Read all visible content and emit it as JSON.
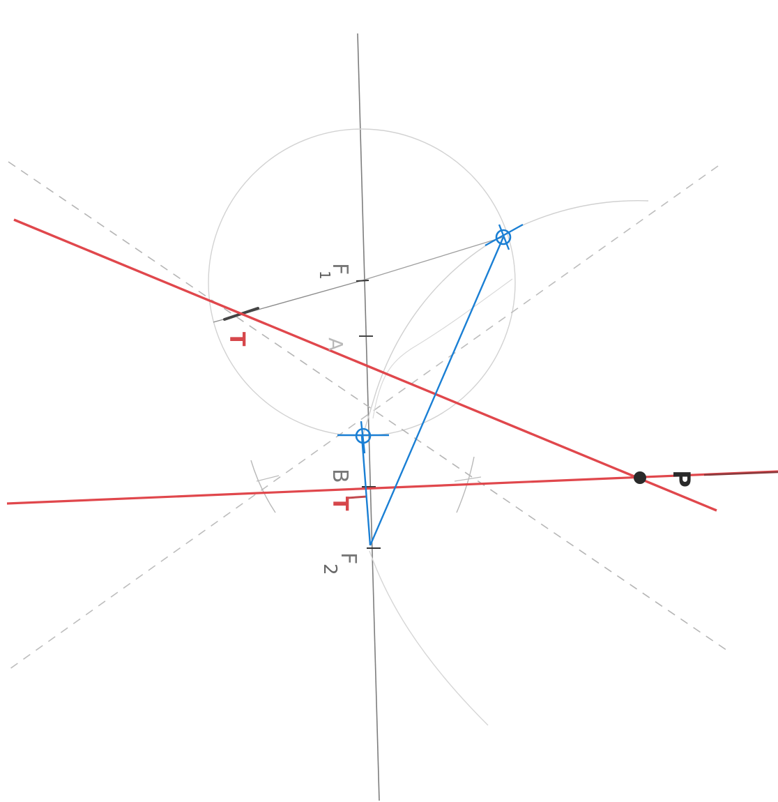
{
  "colors": {
    "pencil": "#9a9a9a",
    "pencil_light": "#c9c9c9",
    "axis": "#7d7d7d",
    "tangent": "#e0474c",
    "construction": "#1a7fd4",
    "point": "#2a2a2a"
  },
  "labels": {
    "focus1": "F",
    "focus1_sub": "1",
    "focus2": "F",
    "focus2_sub": "2",
    "vertex_a": "A",
    "vertex_b": "B",
    "tangent_upper": "T",
    "tangent_lower": "T",
    "point": "P"
  },
  "icons": {
    "contact_marker": "circle-cross-icon",
    "point_marker": "filled-dot-icon"
  }
}
